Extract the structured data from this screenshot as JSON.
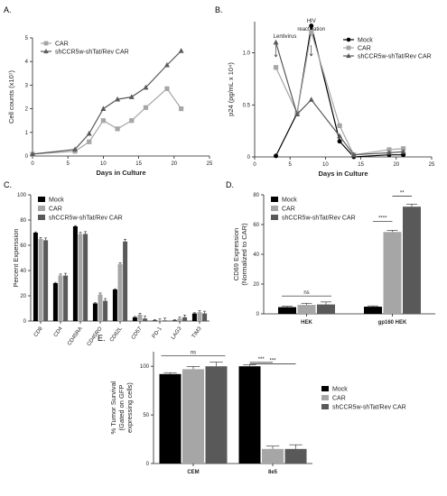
{
  "colors": {
    "mock": "#000000",
    "car": "#a6a6a6",
    "sh": "#595959",
    "axis": "#222222"
  },
  "chart_data": [
    {
      "panel": "A.",
      "type": "line",
      "xlabel": "Days in Culture",
      "ylabel": "Cell counts (x10⁷)",
      "xlim": [
        0,
        25
      ],
      "ylim": [
        0,
        5
      ],
      "xticks": [
        0,
        5,
        10,
        15,
        20,
        25
      ],
      "yticks": [
        0,
        1,
        2,
        3,
        4,
        5
      ],
      "legend_position": "top-left",
      "series": [
        {
          "name": "CAR",
          "color": "#a6a6a6",
          "marker": "square",
          "x": [
            0,
            6,
            8,
            10,
            12,
            14,
            16,
            19,
            21
          ],
          "y": [
            0.08,
            0.2,
            0.6,
            1.5,
            1.15,
            1.5,
            2.05,
            2.85,
            2.0
          ]
        },
        {
          "name": "shCCR5w-shTat/Rev CAR",
          "color": "#595959",
          "marker": "triangle",
          "x": [
            0,
            6,
            8,
            10,
            12,
            14,
            16,
            19,
            21
          ],
          "y": [
            0.08,
            0.28,
            0.95,
            2.0,
            2.4,
            2.5,
            2.9,
            3.85,
            4.45
          ]
        }
      ]
    },
    {
      "panel": "B.",
      "type": "line",
      "xlabel": "Days in Culture",
      "ylabel": "p24 (pg/mL x 10⁴)",
      "xlim": [
        0,
        25
      ],
      "ylim": [
        0,
        1.3
      ],
      "xticks": [
        0,
        5,
        10,
        15,
        20,
        25
      ],
      "yticks": [
        0,
        0.5,
        1.0
      ],
      "ytick_labels": [
        "0",
        "0.5",
        "1.0"
      ],
      "legend_position": "top-right",
      "annotations": [
        {
          "text": "Lentivirus",
          "x": 3
        },
        {
          "text": "HIV reactivation",
          "x": 8
        }
      ],
      "series": [
        {
          "name": "Mock",
          "color": "#000000",
          "marker": "circle",
          "x": [
            3,
            6,
            8,
            12,
            14,
            19,
            21
          ],
          "y": [
            0.01,
            0.42,
            1.26,
            0.15,
            0.0,
            0.02,
            0.02
          ]
        },
        {
          "name": "CAR",
          "color": "#a6a6a6",
          "marker": "square",
          "x": [
            3,
            6,
            8,
            12,
            14,
            19,
            21
          ],
          "y": [
            0.86,
            0.42,
            1.2,
            0.3,
            0.02,
            0.07,
            0.08
          ]
        },
        {
          "name": "shCCR5w-shTat/Rev CAR",
          "color": "#595959",
          "marker": "triangle",
          "x": [
            3,
            6,
            8,
            12,
            14,
            19,
            21
          ],
          "y": [
            1.1,
            0.41,
            0.55,
            0.2,
            0.02,
            0.04,
            0.05
          ]
        }
      ]
    },
    {
      "panel": "C.",
      "type": "bar",
      "ylabel": "Percent Experssion",
      "ylim": [
        0,
        100
      ],
      "yticks": [
        0,
        20,
        40,
        60,
        80,
        100
      ],
      "legend_position": "top-left",
      "categories": [
        "CD8",
        "CD4",
        "CD45RA",
        "CD45RO",
        "CD62L",
        "CD57",
        "PD-1",
        "LAG3",
        "TIM3"
      ],
      "series": [
        {
          "name": "Mock",
          "color": "#000000",
          "values": [
            70,
            30,
            75,
            14,
            25,
            3,
            0.5,
            0.5,
            6
          ]
        },
        {
          "name": "CAR",
          "color": "#a6a6a6",
          "values": [
            65,
            36,
            69,
            21,
            45,
            5,
            0.5,
            2,
            7
          ]
        },
        {
          "name": "shCCR5w-shTat/Rev CAR",
          "color": "#595959",
          "values": [
            64,
            36,
            69,
            16,
            63,
            2,
            0.5,
            3,
            6
          ]
        }
      ]
    },
    {
      "panel": "D.",
      "type": "bar",
      "ylabel": "CD69 Expression (Normalized to CAR)",
      "ylim": [
        0,
        80
      ],
      "yticks": [
        0,
        20,
        40,
        60,
        80
      ],
      "legend_position": "top-left",
      "categories": [
        "HEK",
        "gp160 HEK"
      ],
      "series": [
        {
          "name": "Mock",
          "color": "#000000",
          "values": [
            4.5,
            4.8
          ]
        },
        {
          "name": "CAR",
          "color": "#a6a6a6",
          "values": [
            6.0,
            55.0
          ]
        },
        {
          "name": "shCCR5w-shTat/Rev CAR",
          "color": "#595959",
          "values": [
            6.3,
            72.0
          ]
        }
      ],
      "significance": [
        {
          "text": "ns",
          "category": "HEK"
        },
        {
          "text": "****",
          "category": "gp160 HEK",
          "between": [
            "Mock",
            "CAR"
          ]
        },
        {
          "text": "**",
          "category": "gp160 HEK",
          "between": [
            "CAR",
            "shCCR5w-shTat/Rev CAR"
          ]
        }
      ]
    },
    {
      "panel": "E.",
      "type": "bar",
      "ylabel": "% Tumor Survival (Gated on GFP expressing cells)",
      "ylim": [
        0,
        115
      ],
      "yticks": [
        0,
        50,
        100
      ],
      "legend_position": "right",
      "categories": [
        "CEM",
        "8e5"
      ],
      "series": [
        {
          "name": "Mock",
          "color": "#000000",
          "values": [
            92,
            100
          ]
        },
        {
          "name": "CAR",
          "color": "#a6a6a6",
          "values": [
            97,
            15
          ]
        },
        {
          "name": "shCCR5w-shTat/Rev CAR",
          "color": "#595959",
          "values": [
            100,
            15
          ]
        }
      ],
      "significance": [
        {
          "text": "ns",
          "category": "CEM"
        },
        {
          "text": "***",
          "category": "8e5",
          "between": [
            "Mock",
            "CAR"
          ]
        },
        {
          "text": "***",
          "category": "8e5",
          "between": [
            "Mock",
            "shCCR5w-shTat/Rev CAR"
          ]
        }
      ]
    }
  ]
}
